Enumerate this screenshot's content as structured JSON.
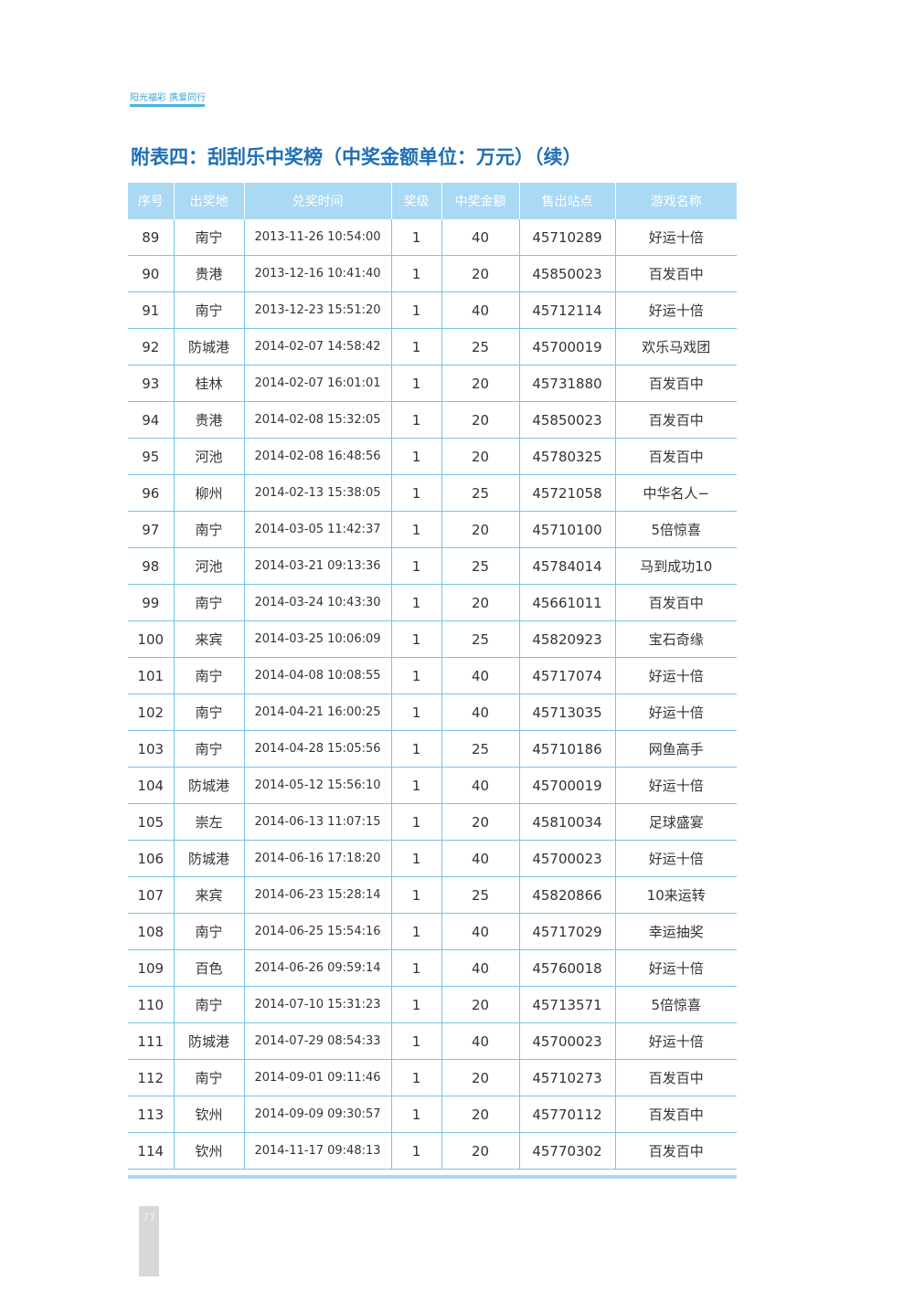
{
  "header": {
    "tag": "阳光福彩 携爱同行"
  },
  "title": "附表四：刮刮乐中奖榜（中奖金额单位：万元）（续）",
  "table": {
    "columns": [
      "序号",
      "出奖地",
      "兑奖时间",
      "奖级",
      "中奖金额",
      "售出站点",
      "游戏名称"
    ],
    "rows": [
      [
        "89",
        "南宁",
        "2013-11-26 10:54:00",
        "1",
        "40",
        "45710289",
        "好运十倍"
      ],
      [
        "90",
        "贵港",
        "2013-12-16 10:41:40",
        "1",
        "20",
        "45850023",
        "百发百中"
      ],
      [
        "91",
        "南宁",
        "2013-12-23 15:51:20",
        "1",
        "40",
        "45712114",
        "好运十倍"
      ],
      [
        "92",
        "防城港",
        "2014-02-07 14:58:42",
        "1",
        "25",
        "45700019",
        "欢乐马戏团"
      ],
      [
        "93",
        "桂林",
        "2014-02-07 16:01:01",
        "1",
        "20",
        "45731880",
        "百发百中"
      ],
      [
        "94",
        "贵港",
        "2014-02-08 15:32:05",
        "1",
        "20",
        "45850023",
        "百发百中"
      ],
      [
        "95",
        "河池",
        "2014-02-08 16:48:56",
        "1",
        "20",
        "45780325",
        "百发百中"
      ],
      [
        "96",
        "柳州",
        "2014-02-13 15:38:05",
        "1",
        "25",
        "45721058",
        "中华名人−"
      ],
      [
        "97",
        "南宁",
        "2014-03-05 11:42:37",
        "1",
        "20",
        "45710100",
        "5倍惊喜"
      ],
      [
        "98",
        "河池",
        "2014-03-21 09:13:36",
        "1",
        "25",
        "45784014",
        "马到成功10"
      ],
      [
        "99",
        "南宁",
        "2014-03-24 10:43:30",
        "1",
        "20",
        "45661011",
        "百发百中"
      ],
      [
        "100",
        "来宾",
        "2014-03-25 10:06:09",
        "1",
        "25",
        "45820923",
        "宝石奇缘"
      ],
      [
        "101",
        "南宁",
        "2014-04-08 10:08:55",
        "1",
        "40",
        "45717074",
        "好运十倍"
      ],
      [
        "102",
        "南宁",
        "2014-04-21 16:00:25",
        "1",
        "40",
        "45713035",
        "好运十倍"
      ],
      [
        "103",
        "南宁",
        "2014-04-28 15:05:56",
        "1",
        "25",
        "45710186",
        "网鱼高手"
      ],
      [
        "104",
        "防城港",
        "2014-05-12 15:56:10",
        "1",
        "40",
        "45700019",
        "好运十倍"
      ],
      [
        "105",
        "崇左",
        "2014-06-13 11:07:15",
        "1",
        "20",
        "45810034",
        "足球盛宴"
      ],
      [
        "106",
        "防城港",
        "2014-06-16 17:18:20",
        "1",
        "40",
        "45700023",
        "好运十倍"
      ],
      [
        "107",
        "来宾",
        "2014-06-23 15:28:14",
        "1",
        "25",
        "45820866",
        "10来运转"
      ],
      [
        "108",
        "南宁",
        "2014-06-25 15:54:16",
        "1",
        "40",
        "45717029",
        "幸运抽奖"
      ],
      [
        "109",
        "百色",
        "2014-06-26 09:59:14",
        "1",
        "40",
        "45760018",
        "好运十倍"
      ],
      [
        "110",
        "南宁",
        "2014-07-10 15:31:23",
        "1",
        "20",
        "45713571",
        "5倍惊喜"
      ],
      [
        "111",
        "防城港",
        "2014-07-29 08:54:33",
        "1",
        "40",
        "45700023",
        "好运十倍"
      ],
      [
        "112",
        "南宁",
        "2014-09-01 09:11:46",
        "1",
        "20",
        "45710273",
        "百发百中"
      ],
      [
        "113",
        "钦州",
        "2014-09-09 09:30:57",
        "1",
        "20",
        "45770112",
        "百发百中"
      ],
      [
        "114",
        "钦州",
        "2014-11-17 09:48:13",
        "1",
        "20",
        "45770302",
        "百发百中"
      ]
    ]
  },
  "page_number": "77"
}
